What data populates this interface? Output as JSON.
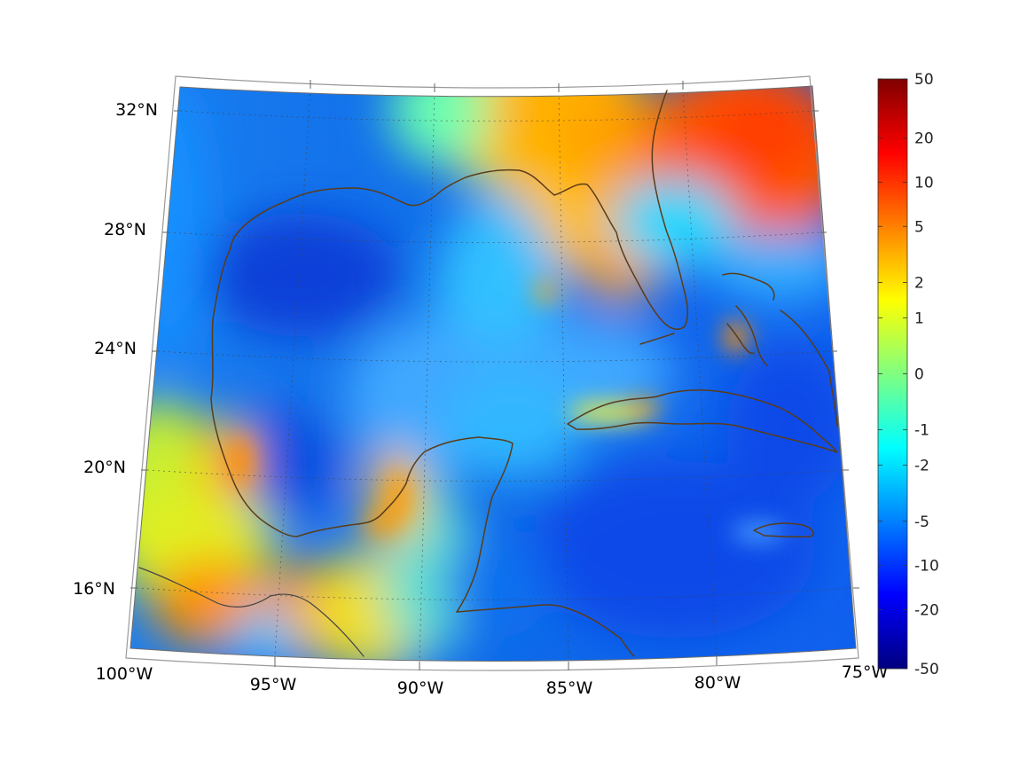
{
  "map": {
    "region": "Gulf of Mexico and Caribbean",
    "longitude_labels": [
      "100°W",
      "95°W",
      "90°W",
      "85°W",
      "80°W",
      "75°W"
    ],
    "latitude_labels": [
      "32°N",
      "28°N",
      "24°N",
      "20°N",
      "16°N"
    ],
    "coastline_color": "#5a3c1a",
    "grid": "dotted"
  },
  "colorbar": {
    "colormap": "jet",
    "tick_labels": [
      "50",
      "20",
      "10",
      "5",
      "2",
      "1",
      "0",
      "-1",
      "-2",
      "-5",
      "-10",
      "-20",
      "-50"
    ],
    "colors": [
      "#800000",
      "#ff0000",
      "#ff8000",
      "#ffff00",
      "#80ff80",
      "#00ffff",
      "#0080ff",
      "#0000ff",
      "#000080"
    ]
  }
}
